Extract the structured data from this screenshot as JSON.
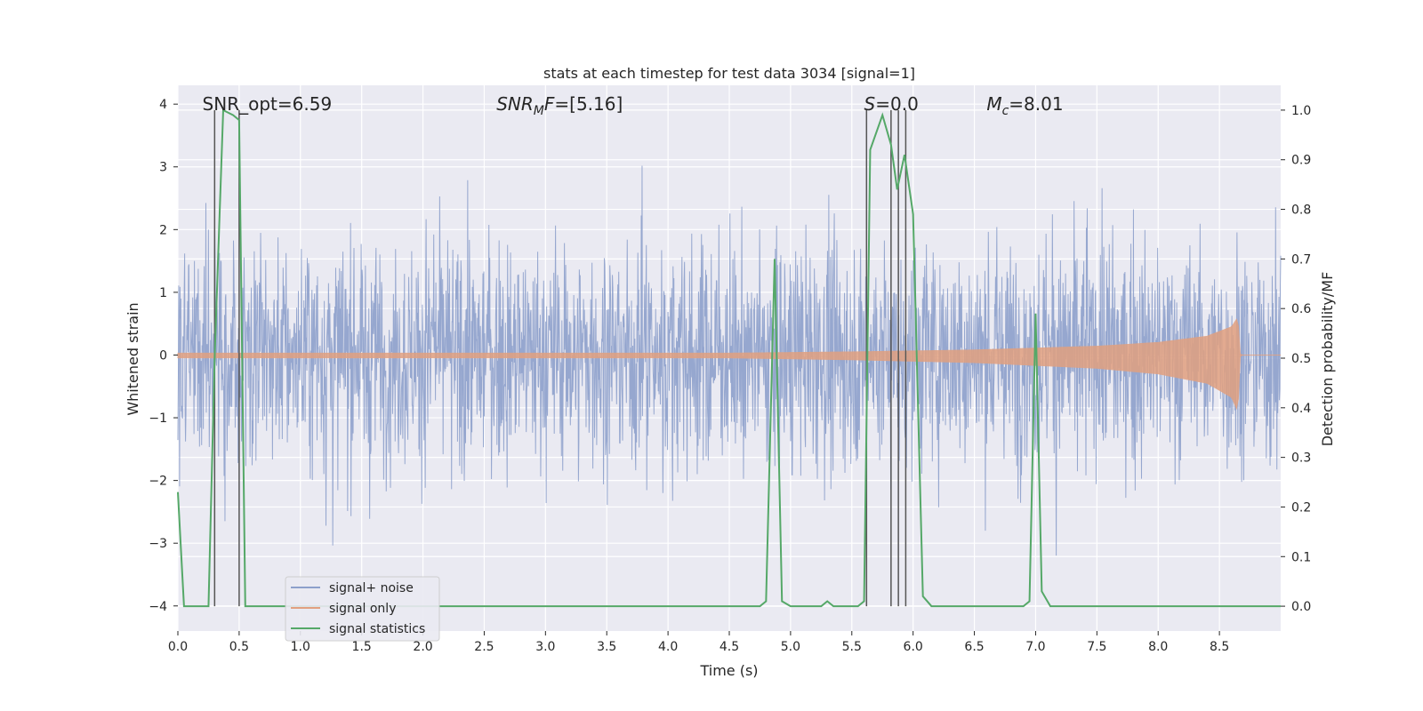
{
  "chart_data": {
    "type": "line",
    "title": "stats at each timestep for test data 3034 [signal=1]",
    "xlabel": "Time (s)",
    "ylabel_left": "Whitened strain",
    "ylabel_right": "Detection probability/MF",
    "xlim": [
      0.0,
      9.0
    ],
    "ylim_left": [
      -4.4,
      4.3
    ],
    "ylim_right": [
      -0.05,
      1.05
    ],
    "x_ticks": [
      "0.0",
      "0.5",
      "1.0",
      "1.5",
      "2.0",
      "2.5",
      "3.0",
      "3.5",
      "4.0",
      "4.5",
      "5.0",
      "5.5",
      "6.0",
      "6.5",
      "7.0",
      "7.5",
      "8.0",
      "8.5"
    ],
    "y_ticks_left": [
      "4",
      "3",
      "2",
      "1",
      "0",
      "−1",
      "−2",
      "−3",
      "−4"
    ],
    "y_ticks_right": [
      "1.0",
      "0.9",
      "0.8",
      "0.7",
      "0.6",
      "0.5",
      "0.4",
      "0.3",
      "0.2",
      "0.1",
      "0.0"
    ],
    "grid": true,
    "legend_position": "lower-left",
    "annotations": [
      {
        "text": "SNR_opt=6.59",
        "x": 0.2
      },
      {
        "text": "SNR_MF=[5.16]",
        "x": 2.6
      },
      {
        "text": "S=0.0",
        "x": 5.6
      },
      {
        "text": "M_c=8.01",
        "x": 6.6
      }
    ],
    "series": [
      {
        "name": "signal+ noise",
        "color": "#8da0cb",
        "axis": "left",
        "description_range": [
          -4.0,
          3.9
        ]
      },
      {
        "name": "signal only",
        "color": "#e1a080",
        "axis": "left",
        "envelope": {
          "x": [
            0.0,
            4.5,
            5.5,
            6.5,
            7.5,
            8.0,
            8.4,
            8.6,
            8.65,
            8.67,
            9.0
          ],
          "amp": [
            0.03,
            0.03,
            0.05,
            0.08,
            0.14,
            0.2,
            0.3,
            0.45,
            0.6,
            0.0,
            0.0
          ]
        }
      },
      {
        "name": "signal statistics",
        "color": "#55a868",
        "axis": "right",
        "x": [
          0.0,
          0.05,
          0.25,
          0.3,
          0.37,
          0.45,
          0.5,
          0.55,
          0.7,
          1.0,
          3.4,
          3.5,
          4.75,
          4.8,
          4.87,
          4.93,
          5.0,
          5.25,
          5.3,
          5.35,
          5.55,
          5.6,
          5.65,
          5.75,
          5.82,
          5.87,
          5.93,
          6.0,
          6.08,
          6.15,
          6.5,
          6.9,
          6.95,
          7.0,
          7.05,
          7.12,
          7.3,
          7.5,
          9.0
        ],
        "y": [
          0.23,
          0.0,
          0.0,
          0.5,
          1.0,
          0.99,
          0.98,
          0.0,
          0.0,
          0.0,
          0.0,
          0.0,
          0.0,
          0.01,
          0.7,
          0.01,
          0.0,
          0.0,
          0.01,
          0.0,
          0.0,
          0.01,
          0.92,
          0.99,
          0.93,
          0.84,
          0.91,
          0.79,
          0.02,
          0.0,
          0.0,
          0.0,
          0.01,
          0.59,
          0.03,
          0.0,
          0.0,
          0.0,
          0.0
        ]
      }
    ],
    "vertical_markers": [
      0.3,
      0.5,
      5.62,
      5.82,
      5.88,
      5.94
    ]
  },
  "colors": {
    "plot_background": "#eaeaf2",
    "grid": "#ffffff",
    "marker_lines": "#555555"
  }
}
